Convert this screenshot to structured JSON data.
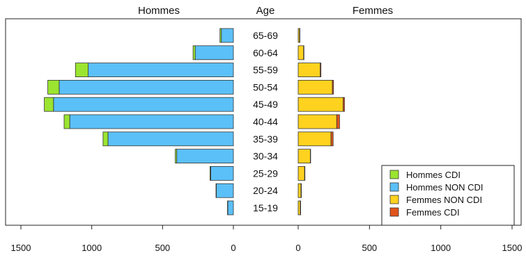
{
  "chart_data": {
    "type": "bar",
    "headers": {
      "left": "Hommes",
      "center": "Age",
      "right": "Femmes"
    },
    "categories": [
      "65-69",
      "60-64",
      "55-59",
      "50-54",
      "45-49",
      "40-44",
      "35-39",
      "30-34",
      "25-29",
      "20-24",
      "15-19"
    ],
    "series": [
      {
        "name": "Hommes NON CDI",
        "side": "left",
        "color": "#5BC0F8",
        "values": [
          85,
          270,
          1025,
          1230,
          1270,
          1155,
          885,
          400,
          160,
          120,
          40
        ]
      },
      {
        "name": "Hommes CDI",
        "side": "left",
        "color": "#9BE430",
        "values": [
          10,
          15,
          90,
          80,
          65,
          40,
          35,
          10,
          5,
          3,
          2
        ]
      },
      {
        "name": "Femmes NON CDI",
        "side": "right",
        "color": "#FFD21F",
        "values": [
          10,
          38,
          155,
          240,
          315,
          270,
          230,
          85,
          45,
          20,
          15
        ]
      },
      {
        "name": "Femmes CDI",
        "side": "right",
        "color": "#E2541B",
        "values": [
          2,
          2,
          5,
          8,
          10,
          20,
          15,
          2,
          2,
          2,
          2
        ]
      }
    ],
    "xlim_left": [
      1500,
      0
    ],
    "xlim_right": [
      0,
      1500
    ],
    "xticks_left": [
      "1500",
      "1000",
      "500",
      "0"
    ],
    "xticks_right": [
      "0",
      "500",
      "1000",
      "1500"
    ],
    "legend": {
      "placement": "bottom-right",
      "items": [
        {
          "label": "Hommes CDI",
          "color": "#9BE430"
        },
        {
          "label": "Hommes NON CDI",
          "color": "#5BC0F8"
        },
        {
          "label": "Femmes NON CDI",
          "color": "#FFD21F"
        },
        {
          "label": "Femmes CDI",
          "color": "#E2541B"
        }
      ]
    }
  }
}
